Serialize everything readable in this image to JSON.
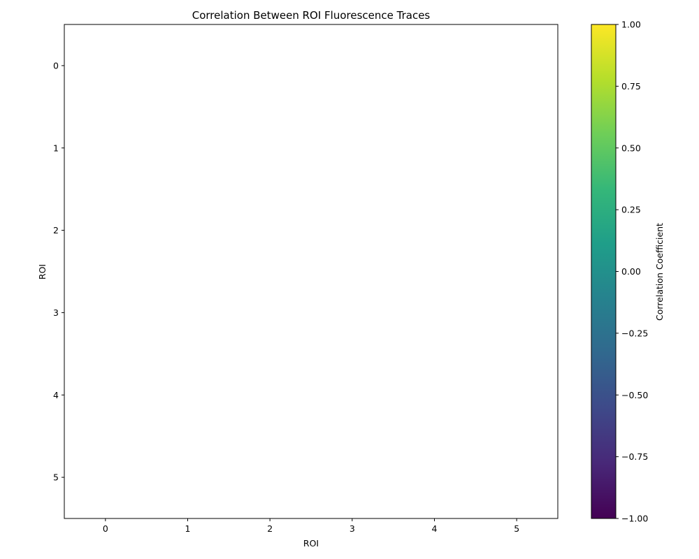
{
  "chart_data": {
    "type": "heatmap",
    "title": "Correlation Between ROI Fluorescence Traces",
    "xlabel": "ROI",
    "ylabel": "ROI",
    "x_categories": [
      "0",
      "1",
      "2",
      "3",
      "4",
      "5"
    ],
    "y_categories": [
      "0",
      "1",
      "2",
      "3",
      "4",
      "5"
    ],
    "values": [],
    "colormap": "viridis",
    "colorbar": {
      "label": "Correlation Coefficient",
      "range": [
        -1.0,
        1.0
      ],
      "ticks": [
        "-1.00",
        "-0.75",
        "-0.50",
        "-0.25",
        "0.00",
        "0.25",
        "0.50",
        "0.75",
        "1.00"
      ],
      "tick_values": [
        -1.0,
        -0.75,
        -0.5,
        -0.25,
        0.0,
        0.25,
        0.5,
        0.75,
        1.0
      ],
      "colors": [
        "#440154",
        "#482878",
        "#3e4989",
        "#31688e",
        "#26828e",
        "#1f9e89",
        "#35b779",
        "#6ece58",
        "#b5de2b",
        "#fde725"
      ]
    },
    "grid": false
  }
}
